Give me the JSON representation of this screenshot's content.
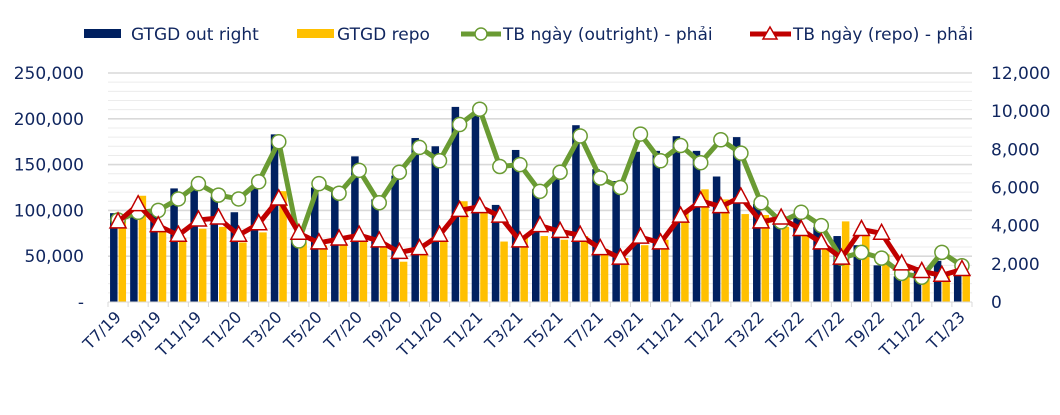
{
  "chart_data": {
    "type": "bar",
    "title": "",
    "xlabel": "",
    "ylabel": "",
    "ylim": [
      0,
      250000
    ],
    "y2lim": [
      0,
      12000
    ],
    "grid": true,
    "legend_position": "top",
    "left_ticks": [
      "-",
      "50,000",
      "100,000",
      "150,000",
      "200,000",
      "250,000"
    ],
    "right_ticks": [
      "0",
      "2,000",
      "4,000",
      "6,000",
      "8,000",
      "10,000",
      "12,000"
    ],
    "categories": [
      "T7/19",
      "T8/19",
      "T9/19",
      "T10/19",
      "T11/19",
      "T12/19",
      "T1/20",
      "T2/20",
      "T3/20",
      "T4/20",
      "T5/20",
      "T6/20",
      "T7/20",
      "T8/20",
      "T9/20",
      "T10/20",
      "T11/20",
      "T12/20",
      "T1/21",
      "T2/21",
      "T3/21",
      "T4/21",
      "T5/21",
      "T6/21",
      "T7/21",
      "T8/21",
      "T9/21",
      "T10/21",
      "T11/21",
      "T12/21",
      "T1/22",
      "T2/22",
      "T3/22",
      "T4/22",
      "T5/22",
      "T6/22",
      "T7/22",
      "T8/22",
      "T9/22",
      "T10/22",
      "T11/22",
      "T12/22",
      "T1/23"
    ],
    "xtick_labels_shown": [
      "T7/19",
      "T9/19",
      "T11/19",
      "T1/20",
      "T3/20",
      "T5/20",
      "T7/20",
      "T9/20",
      "T11/20",
      "T1/21",
      "T3/21",
      "T5/21",
      "T7/21",
      "T9/21",
      "T11/21",
      "T1/22",
      "T3/22",
      "T5/22",
      "T7/22",
      "T9/22",
      "T11/22",
      "T1/23"
    ],
    "series": [
      {
        "name": "GTGD out right",
        "type": "bar",
        "axis": "left",
        "color": "#002060",
        "values": [
          97000,
          99000,
          100000,
          124000,
          127000,
          115000,
          98000,
          125000,
          183000,
          70000,
          125000,
          120000,
          159000,
          112000,
          138000,
          179000,
          170000,
          213000,
          205000,
          106000,
          166000,
          123000,
          138000,
          193000,
          145000,
          132000,
          164000,
          165000,
          181000,
          165000,
          137000,
          180000,
          107000,
          88000,
          92000,
          82000,
          72000,
          62000,
          40000,
          28000,
          38000,
          45000,
          30000
        ]
      },
      {
        "name": "GTGD repo",
        "type": "bar",
        "axis": "left",
        "color": "#FFC000",
        "values": [
          92000,
          116000,
          78000,
          70000,
          80000,
          82000,
          65000,
          76000,
          121000,
          65000,
          62000,
          64000,
          66000,
          60000,
          44000,
          52000,
          68000,
          110000,
          97000,
          66000,
          72000,
          72000,
          68000,
          72000,
          58000,
          48000,
          62000,
          68000,
          100000,
          123000,
          112000,
          96000,
          95000,
          82000,
          72000,
          60000,
          88000,
          80000,
          52000,
          35000,
          28000,
          30000,
          30000
        ]
      },
      {
        "name": "TB ngày (outright) - phải",
        "type": "line",
        "axis": "right",
        "color": "#6A9B33",
        "marker": "circle",
        "values": [
          4300,
          4700,
          4800,
          5400,
          6200,
          5600,
          5400,
          6300,
          8400,
          3200,
          6200,
          5700,
          6900,
          5200,
          6800,
          8100,
          7400,
          9300,
          10100,
          7100,
          7200,
          5800,
          6800,
          8700,
          6500,
          6000,
          8800,
          7400,
          8200,
          7300,
          8500,
          7800,
          5200,
          4200,
          4700,
          4000,
          2300,
          2600,
          2300,
          1500,
          1300,
          2600,
          1900
        ]
      },
      {
        "name": "TB ngày (repo) - phải",
        "type": "line",
        "axis": "right",
        "color": "#C00000",
        "marker": "triangle",
        "values": [
          4200,
          5100,
          4000,
          3500,
          4300,
          4400,
          3500,
          4100,
          5400,
          3600,
          3100,
          3300,
          3500,
          3200,
          2600,
          2800,
          3500,
          4800,
          5000,
          4500,
          3200,
          4000,
          3700,
          3500,
          2800,
          2300,
          3400,
          3100,
          4500,
          5300,
          5000,
          5500,
          4200,
          4400,
          3800,
          3100,
          2300,
          3800,
          3600,
          2000,
          1600,
          1400,
          1700
        ]
      }
    ]
  },
  "legend": [
    {
      "label": "GTGD out right",
      "icon": "navy-bar-swatch"
    },
    {
      "label": "GTGD repo",
      "icon": "gold-bar-swatch"
    },
    {
      "label": "TB ngày (outright) - phải",
      "icon": "green-line-circle-marker"
    },
    {
      "label": "TB ngày (repo) - phải",
      "icon": "red-line-triangle-marker"
    }
  ]
}
